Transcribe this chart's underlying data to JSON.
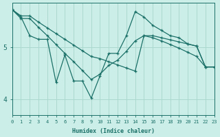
{
  "xlabel": "Humidex (Indice chaleur)",
  "bg_color": "#cceee8",
  "grid_color": "#aad8d0",
  "line_color": "#1a7068",
  "x_min": 0,
  "x_max": 23,
  "y_min": 3.7,
  "y_max": 5.85,
  "yticks": [
    4,
    5
  ],
  "xticks": [
    0,
    1,
    2,
    3,
    4,
    5,
    6,
    7,
    8,
    9,
    10,
    11,
    12,
    13,
    14,
    15,
    16,
    17,
    18,
    19,
    20,
    21,
    22,
    23
  ],
  "series1_x": [
    0,
    1,
    2,
    3,
    4,
    5,
    6,
    7,
    8,
    9,
    10,
    11,
    12,
    13,
    14,
    15,
    16,
    17,
    18,
    19,
    20,
    21,
    22,
    23
  ],
  "series1_y": [
    5.72,
    5.6,
    5.6,
    5.48,
    5.37,
    5.26,
    5.15,
    5.04,
    4.93,
    4.82,
    4.78,
    4.72,
    4.66,
    4.6,
    4.54,
    5.22,
    5.22,
    5.18,
    5.14,
    5.1,
    5.06,
    5.02,
    4.62,
    4.62
  ],
  "series2_x": [
    0,
    1,
    2,
    3,
    4,
    5,
    6,
    7,
    8,
    9,
    10,
    11,
    12,
    13,
    14,
    15,
    16,
    17,
    18,
    19,
    20,
    21,
    22,
    23
  ],
  "series2_y": [
    5.72,
    5.58,
    5.22,
    5.15,
    5.15,
    4.32,
    4.85,
    4.35,
    4.35,
    4.02,
    4.45,
    4.88,
    4.88,
    5.22,
    5.68,
    5.58,
    5.42,
    5.32,
    5.22,
    5.18,
    5.06,
    5.02,
    4.62,
    4.62
  ],
  "series3_x": [
    0,
    1,
    2,
    3,
    4,
    5,
    6,
    7,
    8,
    9,
    10,
    11,
    12,
    13,
    14,
    15,
    16,
    17,
    18,
    19,
    20,
    21,
    22,
    23
  ],
  "series3_y": [
    5.72,
    5.55,
    5.55,
    5.38,
    5.22,
    5.05,
    4.88,
    4.72,
    4.55,
    4.38,
    4.48,
    4.65,
    4.75,
    4.92,
    5.12,
    5.22,
    5.18,
    5.12,
    5.05,
    4.98,
    4.9,
    4.82,
    4.62,
    4.62
  ]
}
